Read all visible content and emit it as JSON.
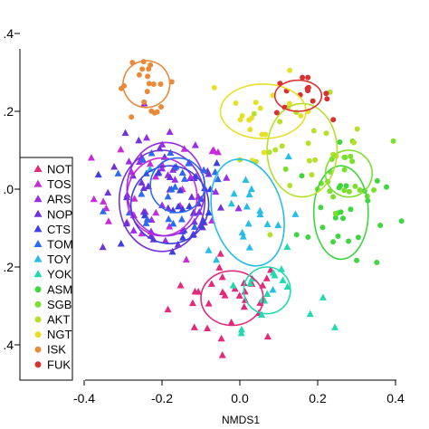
{
  "chart_data": {
    "type": "scatter",
    "xlabel": "NMDS1",
    "ylabel": "",
    "xlim": [
      -0.5,
      0.5
    ],
    "ylim": [
      -0.56,
      0.56
    ],
    "x_ticks": [
      "-0.4",
      "-0.2",
      "0.0",
      "0.2",
      "0.4"
    ],
    "x_tick_values": [
      -0.4,
      -0.2,
      0.0,
      0.2,
      0.4
    ],
    "y_ticks": [
      ".4",
      ".2",
      ".0",
      ".2",
      ".4"
    ],
    "y_tick_values": [
      0.4,
      0.2,
      0.0,
      -0.2,
      -0.4
    ],
    "legend_position": "bottom-left",
    "series": [
      {
        "name": "NOT",
        "color": "#e3297a",
        "marker": "triangle",
        "center": [
          -0.02,
          -0.28
        ],
        "spread": [
          0.1,
          0.07
        ],
        "count": 30,
        "ellipse": {
          "rx": 0.08,
          "ry": 0.07,
          "angle": 0
        }
      },
      {
        "name": "TOS",
        "color": "#c92bd9",
        "marker": "triangle",
        "center": [
          -0.2,
          -0.02
        ],
        "spread": [
          0.11,
          0.1
        ],
        "count": 26,
        "ellipse": {
          "rx": 0.09,
          "ry": 0.1,
          "angle": 0
        }
      },
      {
        "name": "ARS",
        "color": "#9a2de8",
        "marker": "triangle",
        "center": [
          -0.19,
          0.0
        ],
        "spread": [
          0.11,
          0.11
        ],
        "count": 28,
        "ellipse": {
          "rx": 0.1,
          "ry": 0.12,
          "angle": 0
        }
      },
      {
        "name": "NOP",
        "color": "#6f34d8",
        "marker": "triangle",
        "center": [
          -0.2,
          -0.03
        ],
        "spread": [
          0.1,
          0.1
        ],
        "count": 30,
        "ellipse": {
          "rx": 0.11,
          "ry": 0.13,
          "angle": 0
        }
      },
      {
        "name": "CTS",
        "color": "#3d3fe0",
        "marker": "triangle",
        "center": [
          -0.18,
          -0.04
        ],
        "spread": [
          0.1,
          0.09
        ],
        "count": 24,
        "ellipse": {
          "rx": 0.1,
          "ry": 0.1,
          "angle": 0
        }
      },
      {
        "name": "TOM",
        "color": "#2b6bf0",
        "marker": "triangle",
        "center": [
          -0.16,
          0.01
        ],
        "spread": [
          0.11,
          0.1
        ],
        "count": 24,
        "ellipse": {
          "rx": 0.07,
          "ry": 0.07,
          "angle": 0
        }
      },
      {
        "name": "TOY",
        "color": "#26bde6",
        "marker": "triangle",
        "center": [
          0.02,
          -0.06
        ],
        "spread": [
          0.09,
          0.12
        ],
        "count": 20,
        "ellipse": {
          "rx": 0.09,
          "ry": 0.14,
          "angle": -15
        }
      },
      {
        "name": "YOK",
        "color": "#22d9b0",
        "marker": "triangle",
        "center": [
          0.07,
          -0.26
        ],
        "spread": [
          0.08,
          0.06
        ],
        "count": 18,
        "ellipse": {
          "rx": 0.06,
          "ry": 0.06,
          "angle": 0
        }
      },
      {
        "name": "ASM",
        "color": "#3fd63f",
        "marker": "circle",
        "center": [
          0.26,
          -0.06
        ],
        "spread": [
          0.07,
          0.1
        ],
        "count": 26,
        "ellipse": {
          "rx": 0.07,
          "ry": 0.12,
          "angle": 0
        }
      },
      {
        "name": "SGB",
        "color": "#7be02d",
        "marker": "circle",
        "center": [
          0.28,
          0.04
        ],
        "spread": [
          0.07,
          0.06
        ],
        "count": 22,
        "ellipse": {
          "rx": 0.06,
          "ry": 0.06,
          "angle": 0
        }
      },
      {
        "name": "AKT",
        "color": "#b6e02b",
        "marker": "circle",
        "center": [
          0.16,
          0.1
        ],
        "spread": [
          0.1,
          0.08
        ],
        "count": 22,
        "ellipse": {
          "rx": 0.09,
          "ry": 0.12,
          "angle": 0
        }
      },
      {
        "name": "NGT",
        "color": "#e6e02b",
        "marker": "circle",
        "center": [
          0.06,
          0.2
        ],
        "spread": [
          0.09,
          0.06
        ],
        "count": 18,
        "ellipse": {
          "rx": 0.11,
          "ry": 0.07,
          "angle": 0
        }
      },
      {
        "name": "ISK",
        "color": "#e88a3a",
        "marker": "circle",
        "center": [
          -0.24,
          0.27
        ],
        "spread": [
          0.05,
          0.05
        ],
        "count": 22,
        "ellipse": {
          "rx": 0.06,
          "ry": 0.06,
          "angle": -30
        }
      },
      {
        "name": "FUK",
        "color": "#d93131",
        "marker": "circle",
        "center": [
          0.15,
          0.24
        ],
        "spread": [
          0.05,
          0.03
        ],
        "count": 14,
        "ellipse": {
          "rx": 0.06,
          "ry": 0.04,
          "angle": 0
        }
      }
    ]
  }
}
